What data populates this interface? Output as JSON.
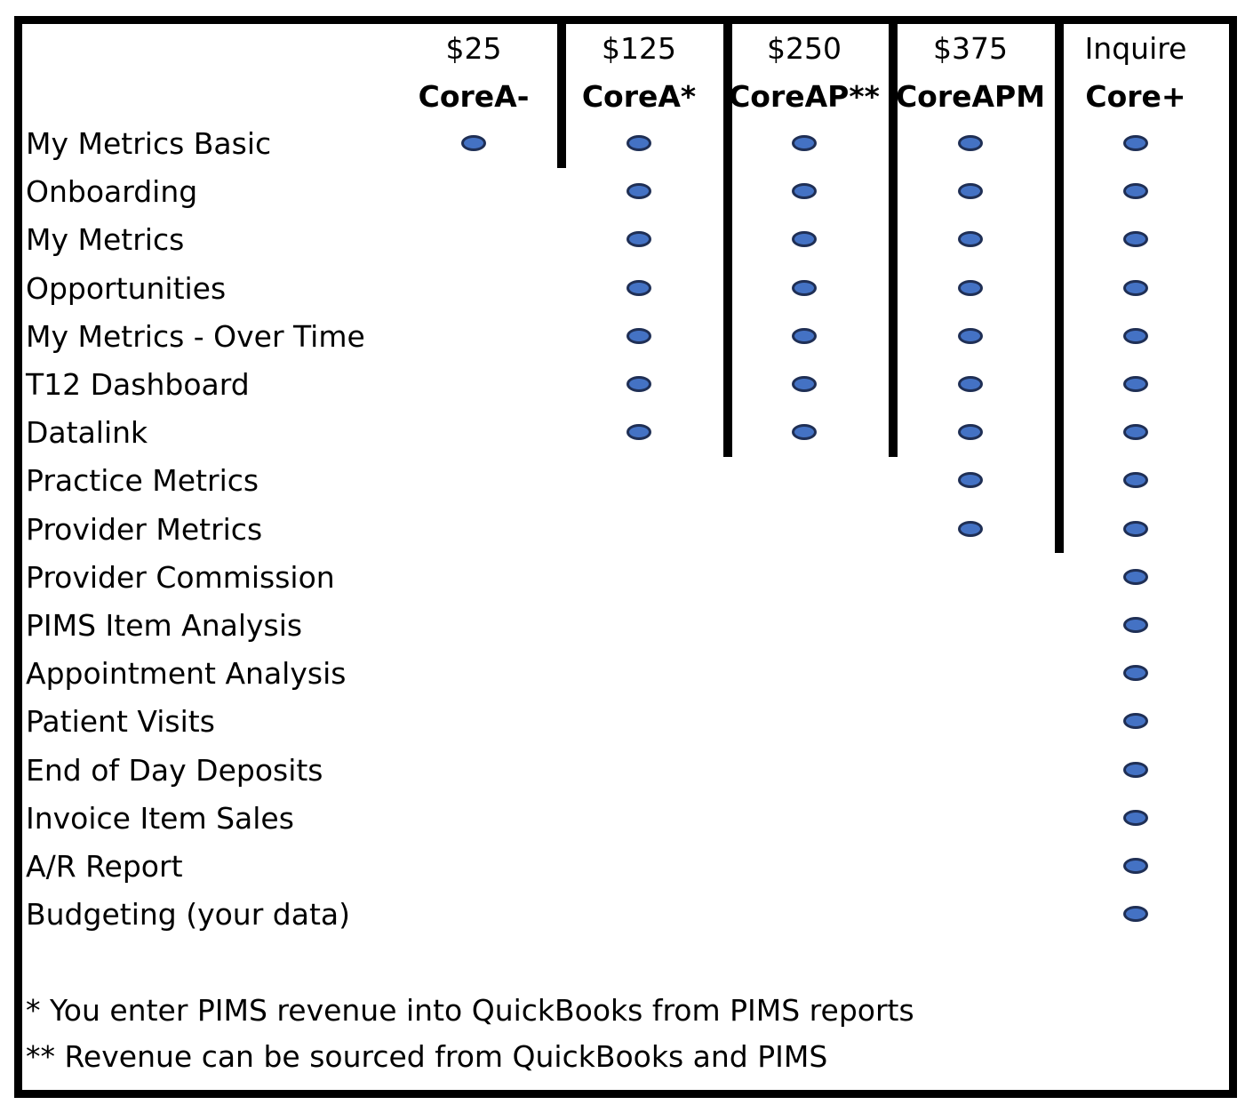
{
  "tiers": [
    {
      "price": "$25",
      "name": "CoreA-"
    },
    {
      "price": "$125",
      "name": "CoreA*"
    },
    {
      "price": "$250",
      "name": "CoreAP**"
    },
    {
      "price": "$375",
      "name": "CoreAPM"
    },
    {
      "price": "Inquire",
      "name": "Core+"
    }
  ],
  "features": [
    {
      "label": "My Metrics Basic",
      "included": [
        true,
        true,
        true,
        true,
        true
      ]
    },
    {
      "label": "Onboarding",
      "included": [
        false,
        true,
        true,
        true,
        true
      ]
    },
    {
      "label": "My Metrics",
      "included": [
        false,
        true,
        true,
        true,
        true
      ]
    },
    {
      "label": "Opportunities",
      "included": [
        false,
        true,
        true,
        true,
        true
      ]
    },
    {
      "label": "My Metrics - Over Time",
      "included": [
        false,
        true,
        true,
        true,
        true
      ]
    },
    {
      "label": "T12 Dashboard",
      "included": [
        false,
        true,
        true,
        true,
        true
      ]
    },
    {
      "label": "Datalink",
      "included": [
        false,
        true,
        true,
        true,
        true
      ]
    },
    {
      "label": "Practice Metrics",
      "included": [
        false,
        false,
        false,
        true,
        true
      ]
    },
    {
      "label": "Provider Metrics",
      "included": [
        false,
        false,
        false,
        true,
        true
      ]
    },
    {
      "label": "Provider Commission",
      "included": [
        false,
        false,
        false,
        false,
        true
      ]
    },
    {
      "label": "PIMS Item Analysis",
      "included": [
        false,
        false,
        false,
        false,
        true
      ]
    },
    {
      "label": "Appointment Analysis",
      "included": [
        false,
        false,
        false,
        false,
        true
      ]
    },
    {
      "label": "Patient Visits",
      "included": [
        false,
        false,
        false,
        false,
        true
      ]
    },
    {
      "label": "End of Day Deposits",
      "included": [
        false,
        false,
        false,
        false,
        true
      ]
    },
    {
      "label": "Invoice Item Sales",
      "included": [
        false,
        false,
        false,
        false,
        true
      ]
    },
    {
      "label": "A/R Report",
      "included": [
        false,
        false,
        false,
        false,
        true
      ]
    },
    {
      "label": "Budgeting (your data)",
      "included": [
        false,
        false,
        false,
        false,
        true
      ]
    }
  ],
  "footnotes": [
    "* You enter PIMS revenue into QuickBooks from PIMS reports",
    "** Revenue can be sourced from QuickBooks and PIMS"
  ],
  "colors": {
    "dot_fill": "#4472c4",
    "dot_border": "#1f2f55",
    "frame": "#000000"
  }
}
